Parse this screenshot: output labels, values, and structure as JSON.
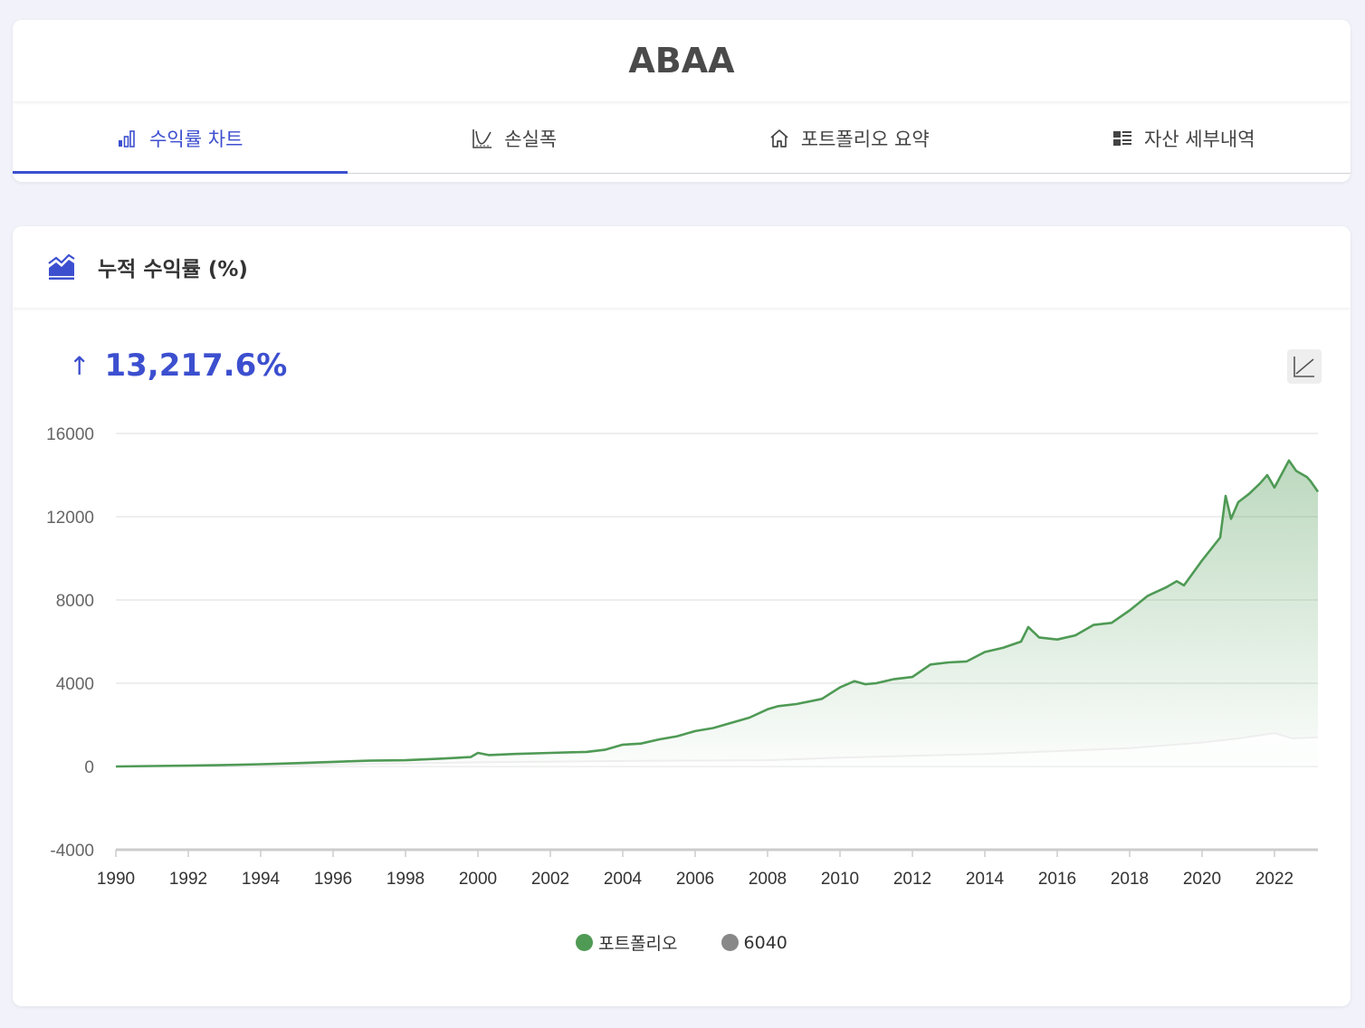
{
  "app": {
    "title": "ABAA"
  },
  "tabs": [
    {
      "label": "수익률 차트",
      "icon": "bar-chart-icon",
      "active": true
    },
    {
      "label": "손실폭",
      "icon": "drawdown-icon",
      "active": false
    },
    {
      "label": "포트폴리오 요약",
      "icon": "home-icon",
      "active": false
    },
    {
      "label": "자산 세부내역",
      "icon": "list-icon",
      "active": false
    }
  ],
  "chart_card": {
    "title": "누적 수익률 (%)",
    "title_icon": "area-chart-icon",
    "summary_arrow": "↑",
    "summary_value": "13,217.6%",
    "scale_toggle_icon": "log-scale-icon"
  },
  "colors": {
    "accent": "#3c4fcf",
    "portfolio": "#4f9a55",
    "benchmark": "#888888"
  },
  "chart_data": {
    "type": "area",
    "title": "",
    "xlabel": "",
    "ylabel": "",
    "xlim": [
      1990,
      2023.2
    ],
    "ylim": [
      -4000,
      16000
    ],
    "y_ticks": [
      16000,
      12000,
      8000,
      4000,
      0,
      -4000
    ],
    "x_ticks": [
      1990,
      1992,
      1994,
      1996,
      1998,
      2000,
      2002,
      2004,
      2006,
      2008,
      2010,
      2012,
      2014,
      2016,
      2018,
      2020,
      2022
    ],
    "grid": true,
    "legend_position": "bottom",
    "series": [
      {
        "name": "포트폴리오",
        "x": [
          1990,
          1991,
          1992,
          1993,
          1994,
          1995,
          1996,
          1997,
          1998,
          1999,
          1999.8,
          2000,
          2000.3,
          2001,
          2002,
          2003,
          2003.5,
          2004,
          2004.5,
          2005,
          2005.5,
          2006,
          2006.5,
          2007,
          2007.5,
          2008,
          2008.3,
          2008.8,
          2009.5,
          2010,
          2010.4,
          2010.7,
          2011,
          2011.5,
          2012,
          2012.5,
          2013,
          2013.5,
          2014,
          2014.5,
          2015,
          2015.2,
          2015.5,
          2016,
          2016.5,
          2017,
          2017.5,
          2018,
          2018.5,
          2019,
          2019.3,
          2019.5,
          2020,
          2020.5,
          2020.65,
          2020.8,
          2021,
          2021.3,
          2021.6,
          2021.8,
          2022,
          2022.4,
          2022.6,
          2022.9,
          2023,
          2023.2
        ],
        "values": [
          0,
          20,
          40,
          70,
          110,
          160,
          220,
          280,
          300,
          380,
          450,
          650,
          550,
          600,
          650,
          700,
          800,
          1050,
          1100,
          1300,
          1450,
          1700,
          1850,
          2100,
          2350,
          2750,
          2900,
          3000,
          3250,
          3800,
          4100,
          3950,
          4000,
          4200,
          4300,
          4900,
          5000,
          5050,
          5500,
          5700,
          6000,
          6700,
          6200,
          6100,
          6300,
          6800,
          6900,
          7500,
          8200,
          8600,
          8900,
          8700,
          9900,
          11000,
          13000,
          11900,
          12700,
          13100,
          13600,
          14000,
          13400,
          14700,
          14200,
          13900,
          13700,
          13200
        ]
      },
      {
        "name": "6040",
        "x": [
          1990,
          1995,
          2000,
          2005,
          2008,
          2010,
          2014,
          2018,
          2020,
          2021,
          2022,
          2022.5,
          2023.2
        ],
        "values": [
          0,
          80,
          200,
          280,
          300,
          420,
          600,
          880,
          1150,
          1350,
          1600,
          1350,
          1400
        ]
      }
    ]
  }
}
